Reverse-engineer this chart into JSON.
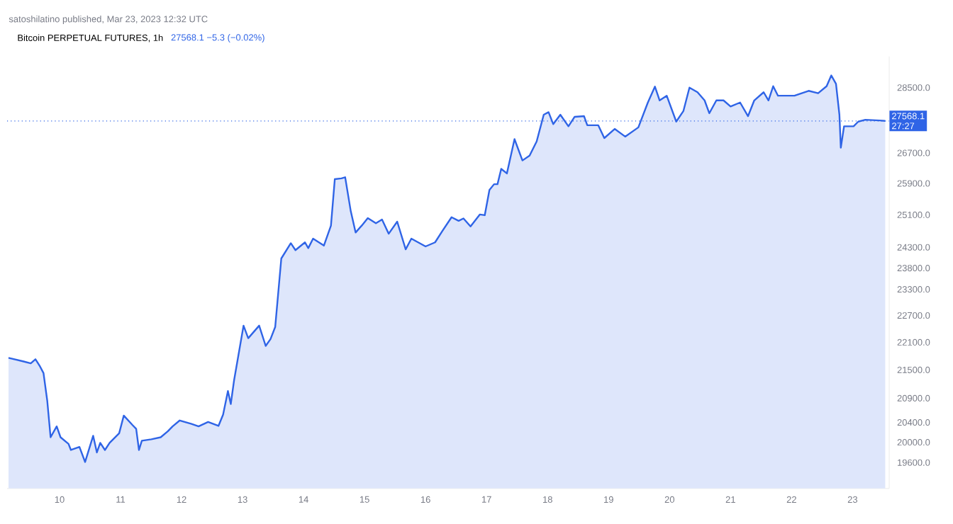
{
  "chart_data": {
    "type": "area",
    "title": "Bitcoin PERPETUAL FUTURES, 1h",
    "subtitle": "27568.1 −5.3 (−0.02%)",
    "annotations": [
      "satoshilatino published, Mar 23, 2023 12:32 UTC",
      "27:27"
    ],
    "color": "#2f64e6",
    "log": true,
    "xlim": [
      9.14,
      23.6
    ],
    "ylim": [
      19100,
      29400
    ],
    "xticks": [
      10,
      11,
      12,
      13,
      14,
      15,
      16,
      17,
      18,
      19,
      20,
      21,
      22,
      23
    ],
    "yticks": [
      {
        "value": 19600,
        "label": "19600.0"
      },
      {
        "value": 20000,
        "label": "20000.0"
      },
      {
        "value": 20400,
        "label": "20400.0"
      },
      {
        "value": 20900,
        "label": "20900.0"
      },
      {
        "value": 21500,
        "label": "21500.0"
      },
      {
        "value": 22100,
        "label": "22100.0"
      },
      {
        "value": 22700,
        "label": "22700.0"
      },
      {
        "value": 23300,
        "label": "23300.0"
      },
      {
        "value": 23800,
        "label": "23800.0"
      },
      {
        "value": 24300,
        "label": "24300.0"
      },
      {
        "value": 25100,
        "label": "25100.0"
      },
      {
        "value": 25900,
        "label": "25900.0"
      },
      {
        "value": 26700,
        "label": "26700.0"
      },
      {
        "value": 28500,
        "label": "28500.0"
      }
    ],
    "ref_lines": [
      {
        "axis": "y",
        "value": 27568.1,
        "label": "27568.1",
        "color": "#2f64e6",
        "line_style": "dotted"
      }
    ],
    "x": [
      9.163,
      9.412,
      9.528,
      9.605,
      9.681,
      9.737,
      9.798,
      9.853,
      9.953,
      10.016,
      10.147,
      10.186,
      10.326,
      10.419,
      10.551,
      10.612,
      10.667,
      10.744,
      10.821,
      10.977,
      11.053,
      11.193,
      11.256,
      11.302,
      11.349,
      11.505,
      11.658,
      11.774,
      11.853,
      11.97,
      12.163,
      12.279,
      12.435,
      12.605,
      12.681,
      12.76,
      12.807,
      12.86,
      13.016,
      13.093,
      13.272,
      13.379,
      13.458,
      13.535,
      13.635,
      13.791,
      13.867,
      14.023,
      14.077,
      14.156,
      14.333,
      14.449,
      14.512,
      14.621,
      14.682,
      14.774,
      14.853,
      14.953,
      15.053,
      15.186,
      15.286,
      15.395,
      15.535,
      15.674,
      15.767,
      16.0,
      16.156,
      16.272,
      16.426,
      16.542,
      16.621,
      16.737,
      16.891,
      16.97,
      17.047,
      17.123,
      17.179,
      17.24,
      17.333,
      17.458,
      17.588,
      17.705,
      17.821,
      17.937,
      18.016,
      18.093,
      18.209,
      18.342,
      18.442,
      18.598,
      18.651,
      18.83,
      18.93,
      19.1,
      19.272,
      19.488,
      19.644,
      19.76,
      19.837,
      19.953,
      20.109,
      20.226,
      20.326,
      20.458,
      20.574,
      20.651,
      20.767,
      20.884,
      21.0,
      21.156,
      21.286,
      21.388,
      21.542,
      21.621,
      21.698,
      21.777,
      22.047,
      22.279,
      22.435,
      22.574,
      22.651,
      22.728,
      22.784,
      22.807,
      22.86,
      23.016,
      23.093,
      23.209,
      23.442,
      23.535
    ],
    "values": [
      21760,
      21680,
      21640,
      21730,
      21570,
      21430,
      20850,
      20100,
      20320,
      20100,
      19970,
      19850,
      19910,
      19610,
      20130,
      19800,
      19990,
      19850,
      19990,
      20180,
      20540,
      20350,
      20270,
      19850,
      20030,
      20060,
      20100,
      20220,
      20320,
      20440,
      20370,
      20320,
      20410,
      20330,
      20560,
      21050,
      20780,
      21270,
      22470,
      22190,
      22470,
      22020,
      22170,
      22440,
      24030,
      24400,
      24230,
      24420,
      24280,
      24510,
      24340,
      24830,
      26010,
      26030,
      26060,
      25190,
      24660,
      24830,
      25020,
      24890,
      24980,
      24630,
      24930,
      24250,
      24510,
      24320,
      24420,
      24690,
      25040,
      24950,
      25010,
      24810,
      25110,
      25090,
      25730,
      25880,
      25880,
      26280,
      26160,
      27070,
      26500,
      26630,
      27010,
      27740,
      27810,
      27480,
      27740,
      27420,
      27680,
      27700,
      27450,
      27450,
      27100,
      27350,
      27140,
      27390,
      28080,
      28530,
      28140,
      28270,
      27550,
      27840,
      28500,
      28370,
      28140,
      27780,
      28140,
      28140,
      27970,
      28080,
      27700,
      28140,
      28370,
      28140,
      28540,
      28270,
      28270,
      28410,
      28340,
      28540,
      28850,
      28610,
      27740,
      26840,
      27420,
      27420,
      27550,
      27600,
      27580,
      27568.1
    ]
  }
}
